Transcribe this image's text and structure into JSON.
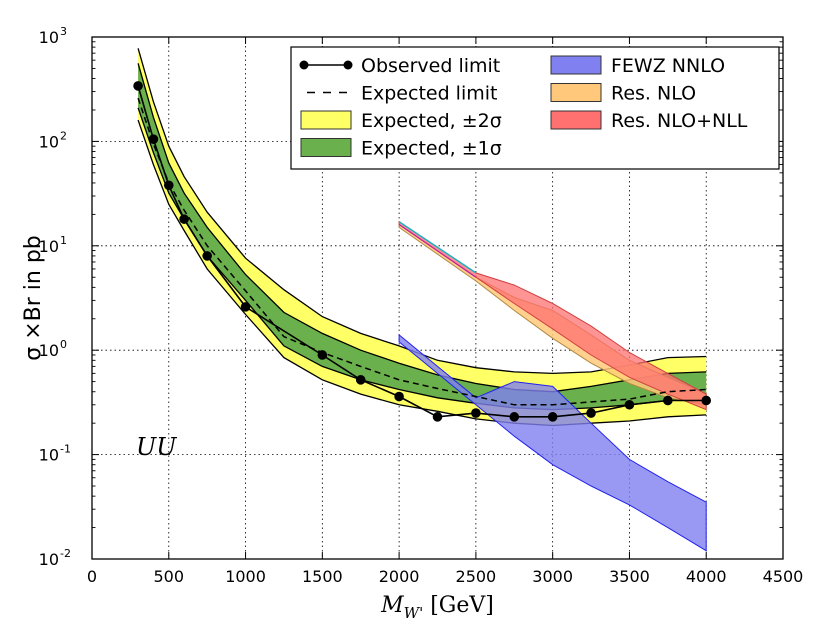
{
  "chart_data": {
    "type": "line",
    "yscale": "log",
    "xlabel": "M_{W'} [GeV]",
    "ylabel": "σ ×Br in pb",
    "xlim": [
      0,
      4500
    ],
    "ylim": [
      0.01,
      1000
    ],
    "x_ticks": [
      0,
      500,
      1000,
      1500,
      2000,
      2500,
      3000,
      3500,
      4000,
      4500
    ],
    "y_ticks": [
      {
        "value": 0.01,
        "base": "10",
        "exp": "-2"
      },
      {
        "value": 0.1,
        "base": "10",
        "exp": "-1"
      },
      {
        "value": 1,
        "base": "10",
        "exp": "0"
      },
      {
        "value": 10,
        "base": "10",
        "exp": "1"
      },
      {
        "value": 100,
        "base": "10",
        "exp": "2"
      },
      {
        "value": 1000,
        "base": "10",
        "exp": "3"
      }
    ],
    "grid": true,
    "annotation": "UU",
    "legend_position": "top-right",
    "masses": [
      300,
      400,
      500,
      600,
      750,
      1000,
      1250,
      1500,
      1750,
      2000,
      2250,
      2500,
      2750,
      3000,
      3250,
      3500,
      3750,
      4000
    ],
    "series": [
      {
        "name": "Observed limit",
        "style": "line-marker",
        "color": "#000000",
        "x": [
          300,
          400,
          500,
          600,
          750,
          1000,
          1500,
          1750,
          2000,
          2250,
          2500,
          2750,
          3000,
          3250,
          3500,
          3750,
          4000
        ],
        "values": [
          340,
          105,
          38,
          18,
          8,
          2.6,
          0.9,
          0.52,
          0.36,
          0.23,
          0.25,
          0.23,
          0.23,
          0.25,
          0.3,
          0.33,
          0.33
        ]
      },
      {
        "name": "Expected limit",
        "style": "dashed",
        "color": "#000000",
        "values": [
          260,
          95,
          40,
          22,
          10,
          3.7,
          1.35,
          0.95,
          0.7,
          0.52,
          0.43,
          0.36,
          0.3,
          0.3,
          0.32,
          0.34,
          0.4,
          0.42
        ]
      },
      {
        "name": "Expected, ±2σ",
        "style": "band",
        "color": "#ffff66",
        "low": [
          160,
          60,
          25,
          14,
          6,
          2.2,
          0.85,
          0.52,
          0.38,
          0.3,
          0.26,
          0.22,
          0.2,
          0.19,
          0.2,
          0.21,
          0.23,
          0.24
        ],
        "high": [
          780,
          240,
          90,
          46,
          21,
          7.6,
          3.8,
          2.1,
          1.45,
          1.1,
          0.8,
          0.68,
          0.62,
          0.6,
          0.62,
          0.72,
          0.85,
          0.87
        ]
      },
      {
        "name": "Expected, ±1σ",
        "style": "band",
        "color": "#6ab04c",
        "low": [
          210,
          78,
          32,
          18,
          8,
          3.0,
          1.1,
          0.7,
          0.52,
          0.42,
          0.35,
          0.31,
          0.28,
          0.27,
          0.28,
          0.3,
          0.33,
          0.34
        ],
        "high": [
          560,
          170,
          62,
          32,
          15,
          5.3,
          2.3,
          1.45,
          1.0,
          0.75,
          0.58,
          0.48,
          0.42,
          0.4,
          0.45,
          0.52,
          0.6,
          0.62
        ]
      },
      {
        "name": "FEWZ NNLO",
        "style": "band",
        "color": "#8080f0",
        "x": [
          2000,
          2250,
          2500,
          2750,
          3000,
          3250,
          3500,
          3750,
          4000
        ],
        "low": [
          1.2,
          0.6,
          0.3,
          0.15,
          0.08,
          0.05,
          0.033,
          0.02,
          0.012
        ],
        "high": [
          1.4,
          0.7,
          0.35,
          0.5,
          0.45,
          0.2,
          0.09,
          0.055,
          0.035
        ]
      },
      {
        "name": "Res. NLO",
        "style": "band",
        "color": "#ffc87a",
        "x": [
          2000,
          2500,
          2750,
          3000,
          3250,
          3500,
          3750,
          4000
        ],
        "low": [
          15,
          4.6,
          2.4,
          1.3,
          0.75,
          0.48,
          0.35,
          0.3
        ],
        "high": [
          16,
          5.0,
          3.2,
          2.4,
          1.4,
          0.8,
          0.55,
          0.38
        ]
      },
      {
        "name": "Res. NLO+NLL",
        "style": "band",
        "color": "#ff7070",
        "x": [
          2000,
          2500,
          2750,
          3000,
          3250,
          3500,
          3750,
          4000
        ],
        "low": [
          16,
          5.0,
          2.8,
          1.6,
          0.9,
          0.55,
          0.38,
          0.27
        ],
        "high": [
          17,
          5.5,
          4.2,
          2.8,
          1.7,
          0.95,
          0.6,
          0.38
        ]
      }
    ],
    "legend": [
      {
        "label": "Observed limit",
        "symbol": "line-marker"
      },
      {
        "label": "Expected limit",
        "symbol": "dashed"
      },
      {
        "label": "Expected, ±2σ",
        "symbol": "patch",
        "color": "#ffff66"
      },
      {
        "label": "Expected, ±1σ",
        "symbol": "patch",
        "color": "#6ab04c"
      },
      {
        "label": "FEWZ NNLO",
        "symbol": "patch",
        "color": "#8080f0"
      },
      {
        "label": "Res. NLO",
        "symbol": "patch",
        "color": "#ffc87a"
      },
      {
        "label": "Res. NLO+NLL",
        "symbol": "patch",
        "color": "#ff7070"
      }
    ]
  }
}
